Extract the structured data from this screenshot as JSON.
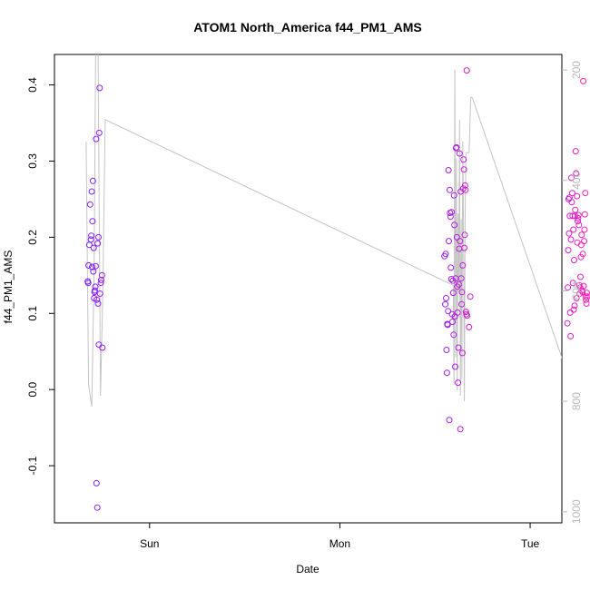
{
  "chart_data": {
    "type": "scatter",
    "title": "ATOM1 North_America f44_PM1_AMS",
    "xlabel": "Date",
    "ylabel": "f44_PM1_AMS",
    "x_range_hours": [
      -12,
      52
    ],
    "ylim": [
      -0.175,
      0.44
    ],
    "x_ticks": [
      {
        "hours": 0,
        "label": "Sun"
      },
      {
        "hours": 24,
        "label": "Mon"
      },
      {
        "hours": 48,
        "label": "Tue"
      }
    ],
    "y_ticks": [
      -0.1,
      0.0,
      0.1,
      0.2,
      0.3,
      0.4
    ],
    "y2_ticks": [
      200,
      400,
      600,
      800,
      1000
    ],
    "y2_range": [
      172,
      1020
    ],
    "grid": false,
    "legend": "none",
    "colors": {
      "start": "#7a1fff",
      "end": "#ff1fb5",
      "line": "#c4c4c4",
      "axis": "#000000",
      "right_axis": "#b8b8b8"
    },
    "points": [
      {
        "x": -7.8,
        "y": 0.142
      },
      {
        "x": -7.75,
        "y": 0.14
      },
      {
        "x": -7.7,
        "y": 0.163
      },
      {
        "x": -7.6,
        "y": 0.19
      },
      {
        "x": -7.5,
        "y": 0.243
      },
      {
        "x": -7.4,
        "y": 0.197
      },
      {
        "x": -7.35,
        "y": 0.202
      },
      {
        "x": -7.3,
        "y": 0.26
      },
      {
        "x": -7.25,
        "y": 0.161
      },
      {
        "x": -7.2,
        "y": 0.221
      },
      {
        "x": -7.15,
        "y": 0.274
      },
      {
        "x": -7.1,
        "y": 0.155
      },
      {
        "x": -7.05,
        "y": 0.186
      },
      {
        "x": -7.0,
        "y": 0.12
      },
      {
        "x": -6.95,
        "y": 0.128
      },
      {
        "x": -6.9,
        "y": 0.13
      },
      {
        "x": -6.85,
        "y": 0.135
      },
      {
        "x": -6.8,
        "y": 0.162
      },
      {
        "x": -6.75,
        "y": 0.329
      },
      {
        "x": -6.7,
        "y": -0.123
      },
      {
        "x": -6.65,
        "y": 0.118
      },
      {
        "x": -6.6,
        "y": -0.155
      },
      {
        "x": -6.55,
        "y": 0.192
      },
      {
        "x": -6.5,
        "y": 0.113
      },
      {
        "x": -6.45,
        "y": 0.2
      },
      {
        "x": -6.4,
        "y": 0.059
      },
      {
        "x": -6.35,
        "y": 0.337
      },
      {
        "x": -6.3,
        "y": 0.396
      },
      {
        "x": -6.25,
        "y": 0.126
      },
      {
        "x": -6.15,
        "y": 0.14
      },
      {
        "x": -6.1,
        "y": 0.144
      },
      {
        "x": -6.0,
        "y": 0.15
      },
      {
        "x": -5.95,
        "y": 0.055
      },
      {
        "x": 37.2,
        "y": 0.175
      },
      {
        "x": 37.3,
        "y": 0.112
      },
      {
        "x": 37.35,
        "y": 0.178
      },
      {
        "x": 37.4,
        "y": 0.12
      },
      {
        "x": 37.45,
        "y": 0.052
      },
      {
        "x": 37.5,
        "y": 0.022
      },
      {
        "x": 37.55,
        "y": 0.086
      },
      {
        "x": 37.6,
        "y": 0.085
      },
      {
        "x": 37.65,
        "y": 0.103
      },
      {
        "x": 37.7,
        "y": 0.288
      },
      {
        "x": 37.75,
        "y": 0.195
      },
      {
        "x": 37.8,
        "y": -0.04
      },
      {
        "x": 37.85,
        "y": 0.262
      },
      {
        "x": 37.9,
        "y": 0.232
      },
      {
        "x": 37.95,
        "y": 0.227
      },
      {
        "x": 38.0,
        "y": 0.16
      },
      {
        "x": 38.05,
        "y": 0.145
      },
      {
        "x": 38.1,
        "y": 0.233
      },
      {
        "x": 38.15,
        "y": 0.099
      },
      {
        "x": 38.2,
        "y": 0.089
      },
      {
        "x": 38.25,
        "y": 0.143
      },
      {
        "x": 38.3,
        "y": 0.127
      },
      {
        "x": 38.35,
        "y": 0.072
      },
      {
        "x": 38.4,
        "y": 0.255
      },
      {
        "x": 38.45,
        "y": 0.216
      },
      {
        "x": 38.5,
        "y": 0.096
      },
      {
        "x": 38.55,
        "y": 0.03
      },
      {
        "x": 38.6,
        "y": 0.146
      },
      {
        "x": 38.65,
        "y": 0.317
      },
      {
        "x": 38.7,
        "y": 0.318
      },
      {
        "x": 38.75,
        "y": 0.2
      },
      {
        "x": 38.8,
        "y": 0.135
      },
      {
        "x": 38.85,
        "y": 0.101
      },
      {
        "x": 38.9,
        "y": 0.009
      },
      {
        "x": 38.95,
        "y": 0.055
      },
      {
        "x": 39.0,
        "y": 0.138
      },
      {
        "x": 39.05,
        "y": 0.185
      },
      {
        "x": 39.1,
        "y": 0.31
      },
      {
        "x": 39.15,
        "y": 0.195
      },
      {
        "x": 39.2,
        "y": -0.052
      },
      {
        "x": 39.25,
        "y": 0.26
      },
      {
        "x": 39.3,
        "y": 0.146
      },
      {
        "x": 39.35,
        "y": 0.112
      },
      {
        "x": 39.4,
        "y": 0.128
      },
      {
        "x": 39.45,
        "y": 0.048
      },
      {
        "x": 39.5,
        "y": 0.163
      },
      {
        "x": 39.55,
        "y": 0.264
      },
      {
        "x": 39.6,
        "y": 0.302
      },
      {
        "x": 39.65,
        "y": 0.289
      },
      {
        "x": 39.7,
        "y": 0.186
      },
      {
        "x": 39.75,
        "y": 0.203
      },
      {
        "x": 39.8,
        "y": 0.268
      },
      {
        "x": 39.85,
        "y": 0.262
      },
      {
        "x": 39.9,
        "y": 0.102
      },
      {
        "x": 39.95,
        "y": 0.099
      },
      {
        "x": 40.0,
        "y": 0.419
      },
      {
        "x": 40.05,
        "y": 0.097
      },
      {
        "x": 40.3,
        "y": 0.082
      },
      {
        "x": 40.45,
        "y": 0.122
      },
      {
        "x": 52.7,
        "y": 0.087
      },
      {
        "x": 52.75,
        "y": 0.134
      },
      {
        "x": 52.8,
        "y": 0.183
      },
      {
        "x": 52.85,
        "y": 0.25
      },
      {
        "x": 52.9,
        "y": 0.205
      },
      {
        "x": 52.95,
        "y": 0.252
      },
      {
        "x": 53.0,
        "y": 0.228
      },
      {
        "x": 53.05,
        "y": 0.101
      },
      {
        "x": 53.1,
        "y": 0.07
      },
      {
        "x": 53.15,
        "y": 0.197
      },
      {
        "x": 53.2,
        "y": 0.278
      },
      {
        "x": 53.25,
        "y": 0.246
      },
      {
        "x": 53.3,
        "y": 0.258
      },
      {
        "x": 53.35,
        "y": 0.228
      },
      {
        "x": 53.4,
        "y": 0.14
      },
      {
        "x": 53.45,
        "y": 0.21
      },
      {
        "x": 53.5,
        "y": 0.105
      },
      {
        "x": 53.55,
        "y": 0.17
      },
      {
        "x": 53.6,
        "y": 0.11
      },
      {
        "x": 53.65,
        "y": 0.228
      },
      {
        "x": 53.7,
        "y": 0.236
      },
      {
        "x": 53.75,
        "y": 0.313
      },
      {
        "x": 53.8,
        "y": 0.284
      },
      {
        "x": 53.85,
        "y": 0.12
      },
      {
        "x": 53.9,
        "y": 0.254
      },
      {
        "x": 53.95,
        "y": 0.193
      },
      {
        "x": 54.0,
        "y": 0.221
      },
      {
        "x": 54.05,
        "y": 0.225
      },
      {
        "x": 54.1,
        "y": 0.229
      },
      {
        "x": 54.15,
        "y": 0.216
      },
      {
        "x": 54.2,
        "y": 0.137
      },
      {
        "x": 54.25,
        "y": 0.126
      },
      {
        "x": 54.3,
        "y": 0.134
      },
      {
        "x": 54.35,
        "y": 0.148
      },
      {
        "x": 54.4,
        "y": 0.174
      },
      {
        "x": 54.45,
        "y": 0.19
      },
      {
        "x": 54.5,
        "y": 0.203
      },
      {
        "x": 54.55,
        "y": 0.13
      },
      {
        "x": 54.6,
        "y": 0.128
      },
      {
        "x": 54.65,
        "y": 0.178
      },
      {
        "x": 54.7,
        "y": 0.405
      },
      {
        "x": 54.75,
        "y": 0.136
      },
      {
        "x": 54.8,
        "y": 0.195
      },
      {
        "x": 54.85,
        "y": 0.21
      },
      {
        "x": 54.9,
        "y": 0.23
      },
      {
        "x": 54.95,
        "y": 0.258
      },
      {
        "x": 55.0,
        "y": 0.122
      },
      {
        "x": 55.05,
        "y": 0.118
      },
      {
        "x": 55.1,
        "y": 0.113
      },
      {
        "x": 55.15,
        "y": 0.127
      },
      {
        "x": 55.2,
        "y": 0.122
      }
    ],
    "line_series": {
      "name": "",
      "axis": "right",
      "values": [
        {
          "x": -8.0,
          "y2": 330
        },
        {
          "x": -7.7,
          "y2": 770
        },
        {
          "x": -7.3,
          "y2": 810
        },
        {
          "x": -7.0,
          "y2": 560
        },
        {
          "x": -6.8,
          "y2": 160
        },
        {
          "x": -6.5,
          "y2": 150
        },
        {
          "x": -6.2,
          "y2": 790
        },
        {
          "x": -5.9,
          "y2": 600
        },
        {
          "x": -5.6,
          "y2": 290
        },
        {
          "x": 38.3,
          "y2": 590
        },
        {
          "x": 38.4,
          "y2": 770
        },
        {
          "x": 38.5,
          "y2": 200
        },
        {
          "x": 38.6,
          "y2": 720
        },
        {
          "x": 38.7,
          "y2": 360
        },
        {
          "x": 38.8,
          "y2": 780
        },
        {
          "x": 38.9,
          "y2": 460
        },
        {
          "x": 39.0,
          "y2": 600
        },
        {
          "x": 39.1,
          "y2": 290
        },
        {
          "x": 39.2,
          "y2": 790
        },
        {
          "x": 39.3,
          "y2": 470
        },
        {
          "x": 39.4,
          "y2": 760
        },
        {
          "x": 39.5,
          "y2": 330
        },
        {
          "x": 39.6,
          "y2": 500
        },
        {
          "x": 39.7,
          "y2": 800
        },
        {
          "x": 39.8,
          "y2": 470
        },
        {
          "x": 39.9,
          "y2": 350
        },
        {
          "x": 40.0,
          "y2": 350
        },
        {
          "x": 40.1,
          "y2": 350
        },
        {
          "x": 40.3,
          "y2": 350
        },
        {
          "x": 40.5,
          "y2": 250
        },
        {
          "x": 40.7,
          "y2": 250
        },
        {
          "x": 52.7,
          "y2": 750
        },
        {
          "x": 52.8,
          "y2": 715
        },
        {
          "x": 53.0,
          "y2": 380
        },
        {
          "x": 53.2,
          "y2": 160
        },
        {
          "x": 53.4,
          "y2": 590
        },
        {
          "x": 53.6,
          "y2": 180
        },
        {
          "x": 53.8,
          "y2": 590
        },
        {
          "x": 54.0,
          "y2": 770
        },
        {
          "x": 54.2,
          "y2": 790
        },
        {
          "x": 54.4,
          "y2": 790
        },
        {
          "x": 54.6,
          "y2": 810
        },
        {
          "x": 54.8,
          "y2": 600
        },
        {
          "x": 55.0,
          "y2": 400
        },
        {
          "x": 55.2,
          "y2": 180
        }
      ]
    }
  }
}
